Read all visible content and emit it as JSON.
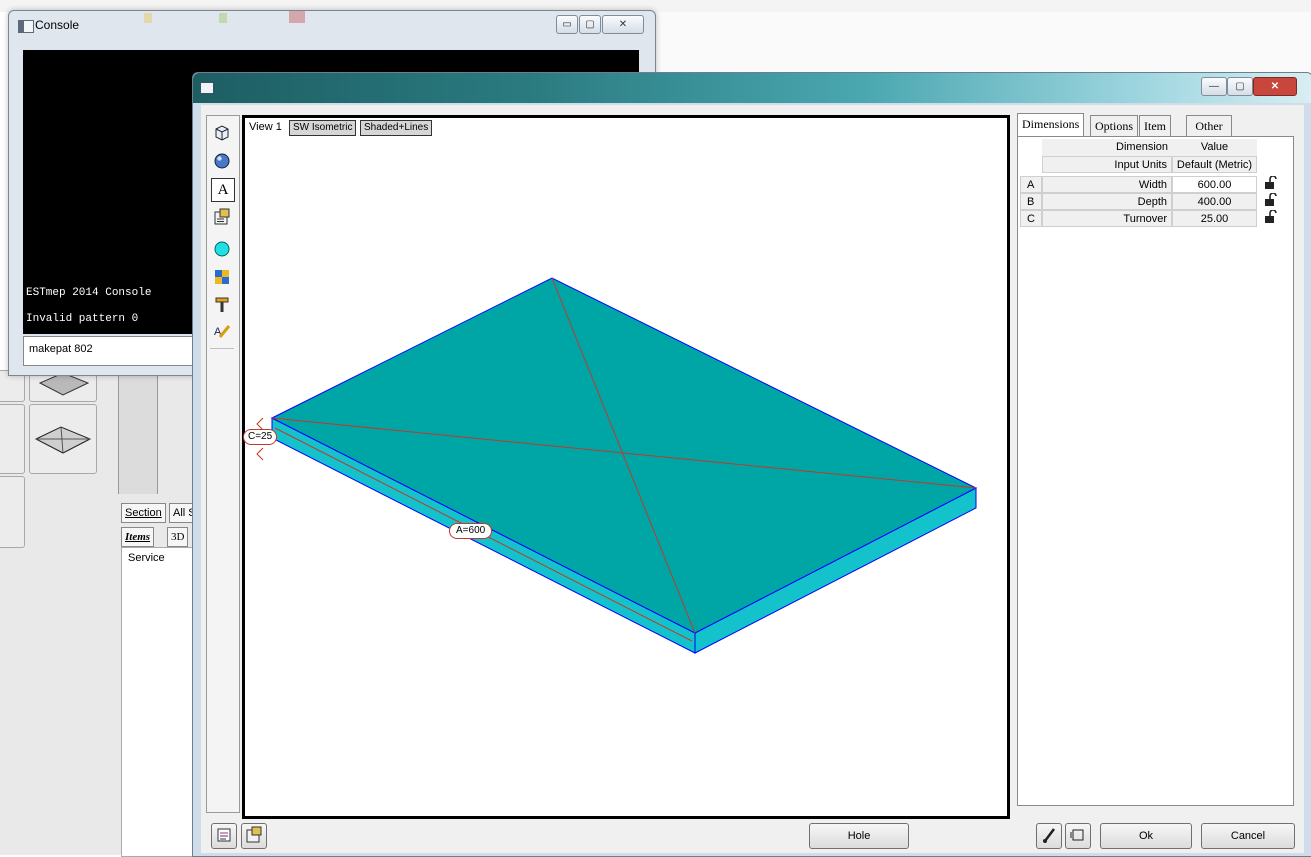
{
  "console": {
    "title": "Console",
    "lines": [
      "ESTmep 2014 Console",
      "Invalid pattern 0"
    ],
    "input_value": "makepat 802",
    "caption_buttons": {
      "minimize": "▭",
      "maximize": "▢",
      "close": "✕"
    }
  },
  "background_panel": {
    "tabs": [
      "Section",
      "All S"
    ],
    "subtabs": [
      "Items",
      "3D"
    ],
    "list_header": "Service"
  },
  "dialog": {
    "caption_buttons": {
      "minimize": "—",
      "maximize": "▢",
      "close": "✕"
    },
    "close_color": "#c8463b"
  },
  "viewport": {
    "view_label": "View 1",
    "projection_button": "SW Isometric",
    "shading_button": "Shaded+Lines",
    "part_fill": "#00a6a6",
    "part_side_fill": "#14c2cc",
    "edge_color": "#0000ff",
    "diagonal_color": "#c0392b",
    "dim_labels": {
      "a": "A=600",
      "c": "C=25"
    }
  },
  "right_panel": {
    "tabs": [
      "Dimensions",
      "Options",
      "Item",
      "Other"
    ],
    "active_tab": "Dimensions",
    "header": {
      "col_dimension": "Dimension",
      "col_value": "Value",
      "units_label": "Input Units",
      "units_value": "Default (Metric)"
    },
    "rows": [
      {
        "id": "A",
        "name": "Width",
        "value": "600.00"
      },
      {
        "id": "B",
        "name": "Depth",
        "value": "400.00"
      },
      {
        "id": "C",
        "name": "Turnover",
        "value": "25.00"
      }
    ]
  },
  "bottom_buttons": {
    "hole": "Hole",
    "ok": "Ok",
    "cancel": "Cancel"
  },
  "icons": [
    "cube-icon",
    "sphere-icon",
    "text-a-icon",
    "properties-icon",
    "circle-icon",
    "color-swatch-icon",
    "hammer-icon",
    "annotate-icon",
    "report-icon",
    "brush-icon",
    "export-icon",
    "lock-icon"
  ]
}
